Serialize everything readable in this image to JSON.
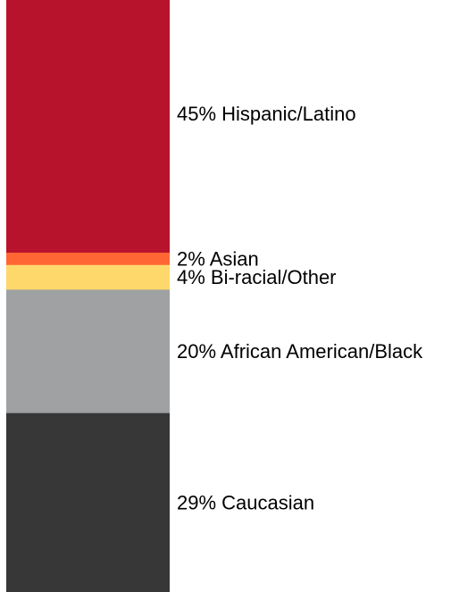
{
  "chart_data": {
    "type": "bar",
    "stacked": true,
    "orientation": "vertical",
    "title": "",
    "series": [
      {
        "value": 45,
        "label": "45% Hispanic/Latino",
        "color": "#b8132c"
      },
      {
        "value": 2,
        "label": "2% Asian",
        "color": "#ff6633"
      },
      {
        "value": 4,
        "label": "4% Bi-racial/Other",
        "color": "#ffd86b"
      },
      {
        "value": 20,
        "label": "20% African American/Black",
        "color": "#9fa1a3"
      },
      {
        "value": 29,
        "label": "29% Caucasian",
        "color": "#373737"
      }
    ]
  }
}
